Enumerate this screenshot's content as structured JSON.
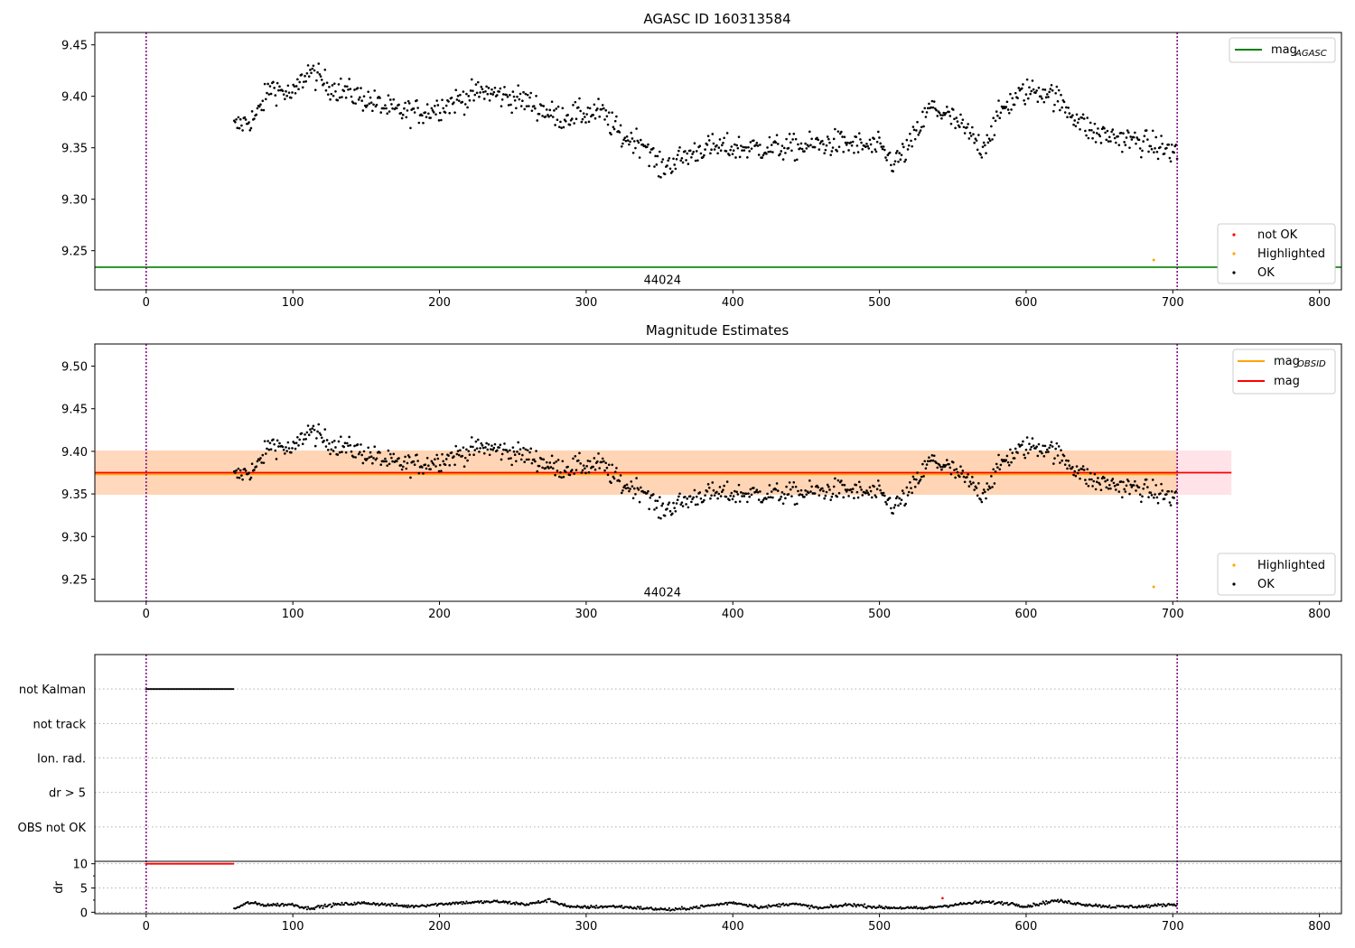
{
  "chart_data": [
    {
      "type": "scatter",
      "title": "AGASC ID 160313584",
      "xlim": [
        -35,
        815
      ],
      "ylim": [
        9.212,
        9.462
      ],
      "xticks": [
        0,
        100,
        200,
        300,
        400,
        500,
        600,
        700,
        800
      ],
      "yticks": [
        9.25,
        9.3,
        9.35,
        9.4,
        9.45
      ],
      "ytick_labels": [
        "9.25",
        "9.30",
        "9.35",
        "9.40",
        "9.45"
      ],
      "vlines": [
        0,
        703
      ],
      "hlines": [
        {
          "name": "mag_AGASC",
          "y": 9.234,
          "color": "#008000"
        }
      ],
      "annotation": {
        "text": "44024",
        "x": 352,
        "y": 9.222
      },
      "legend_upper": {
        "placement": "upper right",
        "entries": [
          {
            "base": "mag",
            "sub": "AGASC",
            "color": "#008000"
          }
        ]
      },
      "legend_lower": {
        "placement": "lower right",
        "entries": [
          {
            "label": "not OK",
            "color": "#ff0000"
          },
          {
            "label": "Highlighted",
            "color": "#ffa500"
          },
          {
            "label": "OK",
            "color": "#000000"
          }
        ]
      },
      "highlighted_points": [
        [
          687,
          9.241
        ]
      ],
      "ok_points_trend": {
        "x_range": [
          60,
          703
        ],
        "knots": [
          [
            60,
            9.37
          ],
          [
            75,
            9.38
          ],
          [
            85,
            9.41
          ],
          [
            100,
            9.4
          ],
          [
            110,
            9.425
          ],
          [
            125,
            9.41
          ],
          [
            145,
            9.4
          ],
          [
            170,
            9.385
          ],
          [
            190,
            9.385
          ],
          [
            210,
            9.395
          ],
          [
            230,
            9.405
          ],
          [
            260,
            9.395
          ],
          [
            280,
            9.38
          ],
          [
            310,
            9.385
          ],
          [
            325,
            9.36
          ],
          [
            340,
            9.355
          ],
          [
            350,
            9.33
          ],
          [
            365,
            9.34
          ],
          [
            380,
            9.35
          ],
          [
            400,
            9.35
          ],
          [
            440,
            9.35
          ],
          [
            470,
            9.355
          ],
          [
            500,
            9.35
          ],
          [
            510,
            9.335
          ],
          [
            520,
            9.35
          ],
          [
            535,
            9.39
          ],
          [
            548,
            9.38
          ],
          [
            560,
            9.365
          ],
          [
            570,
            9.35
          ],
          [
            585,
            9.39
          ],
          [
            600,
            9.405
          ],
          [
            615,
            9.405
          ],
          [
            630,
            9.385
          ],
          [
            645,
            9.365
          ],
          [
            680,
            9.355
          ],
          [
            703,
            9.345
          ]
        ],
        "scatter": 0.012
      }
    },
    {
      "type": "scatter",
      "title": "Magnitude Estimates",
      "xlim": [
        -35,
        815
      ],
      "ylim": [
        9.224,
        9.526
      ],
      "xticks": [
        0,
        100,
        200,
        300,
        400,
        500,
        600,
        700,
        800
      ],
      "yticks": [
        9.25,
        9.3,
        9.35,
        9.4,
        9.45,
        9.5
      ],
      "ytick_labels": [
        "9.25",
        "9.30",
        "9.35",
        "9.40",
        "9.45",
        "9.50"
      ],
      "vlines": [
        0,
        703
      ],
      "mag": 9.375,
      "mag_obsid": 9.373,
      "band": [
        9.349,
        9.401
      ],
      "band_xlim": [
        -35,
        740
      ],
      "annotation": {
        "text": "44024",
        "x": 352,
        "y": 9.235
      },
      "legend_upper": {
        "placement": "upper right",
        "entries": [
          {
            "base": "mag",
            "sub": "OBSID",
            "color": "#ffa500"
          },
          {
            "label": "mag",
            "color": "#ff0000"
          }
        ]
      },
      "legend_lower": {
        "placement": "lower right",
        "entries": [
          {
            "label": "Highlighted",
            "color": "#ffa500"
          },
          {
            "label": "OK",
            "color": "#000000"
          }
        ]
      },
      "highlighted_points": [
        [
          687,
          9.241
        ]
      ]
    },
    {
      "type": "scatter",
      "xlim": [
        -35,
        815
      ],
      "flag_rows": [
        "not Kalman",
        "not track",
        "Ion. rad.",
        "dr > 5",
        "OBS not OK"
      ],
      "flag_intervals": [
        {
          "row": "not Kalman",
          "x": [
            0,
            60
          ]
        }
      ],
      "xticks": [
        0,
        100,
        200,
        300,
        400,
        500,
        600,
        700,
        800
      ],
      "vlines": [
        0,
        703
      ],
      "dr_panel": {
        "ylabel": "dr",
        "ylim": [
          -0.3,
          10.5
        ],
        "yticks": [
          0,
          5,
          10
        ],
        "clipped_points": {
          "x": [
            0,
            60
          ],
          "y": 10,
          "color": "#ff0000"
        },
        "notok_points": [
          [
            543,
            2.9
          ]
        ],
        "ok_trend": {
          "x_range": [
            60,
            703
          ],
          "knots": [
            [
              60,
              0.7
            ],
            [
              70,
              2.0
            ],
            [
              80,
              1.5
            ],
            [
              100,
              1.6
            ],
            [
              110,
              0.8
            ],
            [
              130,
              1.6
            ],
            [
              150,
              1.9
            ],
            [
              180,
              1.2
            ],
            [
              210,
              1.9
            ],
            [
              240,
              2.2
            ],
            [
              260,
              1.6
            ],
            [
              275,
              2.5
            ],
            [
              290,
              1.0
            ],
            [
              320,
              1.2
            ],
            [
              340,
              0.8
            ],
            [
              360,
              0.5
            ],
            [
              380,
              1.2
            ],
            [
              400,
              2.0
            ],
            [
              420,
              1.0
            ],
            [
              440,
              1.8
            ],
            [
              460,
              0.8
            ],
            [
              480,
              1.6
            ],
            [
              500,
              1.0
            ],
            [
              530,
              0.8
            ],
            [
              550,
              1.5
            ],
            [
              570,
              2.1
            ],
            [
              590,
              1.8
            ],
            [
              600,
              1.2
            ],
            [
              620,
              2.4
            ],
            [
              640,
              1.6
            ],
            [
              660,
              1.1
            ],
            [
              680,
              1.2
            ],
            [
              703,
              1.7
            ]
          ],
          "scatter": 0.3
        }
      }
    }
  ]
}
